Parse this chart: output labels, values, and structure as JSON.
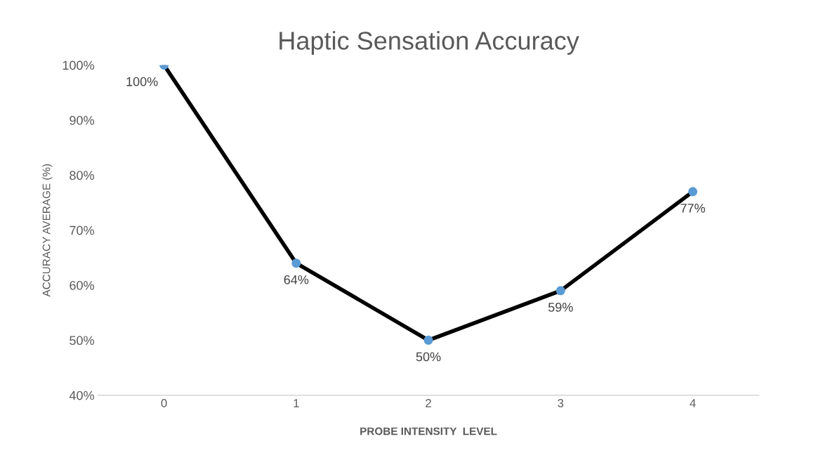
{
  "chart_data": {
    "type": "line",
    "title": "Haptic Sensation Accuracy",
    "xlabel": "PROBE INTENSITY  LEVEL",
    "ylabel": "ACCURACY AVERAGE (%)",
    "categories": [
      "0",
      "1",
      "2",
      "3",
      "4"
    ],
    "series": [
      {
        "color": "#000000",
        "colors": [
          "#5b9bd5",
          "#5b9bd5",
          "#5b9bd5",
          "#5b9bd5",
          "#5b9bd5"
        ],
        "values": [
          100,
          64,
          50,
          59,
          77
        ],
        "value_labels": [
          "100%",
          "64%",
          "50%",
          "59%",
          "77%"
        ]
      }
    ],
    "ylim": [
      40,
      100
    ],
    "yticks": [
      {
        "value": 40,
        "label": "40%"
      },
      {
        "value": 50,
        "label": "50%"
      },
      {
        "value": 60,
        "label": "60%"
      },
      {
        "value": 70,
        "label": "70%"
      },
      {
        "value": 80,
        "label": "80%"
      },
      {
        "value": 90,
        "label": "90%"
      },
      {
        "value": 100,
        "label": "100%"
      }
    ],
    "grid": false,
    "legend": false,
    "marker": "circle",
    "line_style": "solid"
  }
}
